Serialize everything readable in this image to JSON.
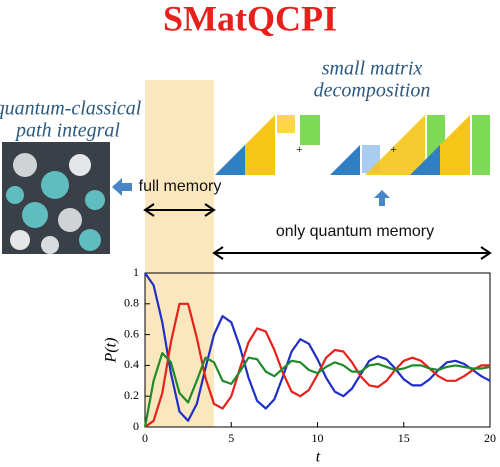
{
  "header": {
    "title": "SMatQCPI"
  },
  "labels": {
    "qcpi": [
      "quantum-classical",
      "path integral"
    ],
    "smd": [
      "small matrix",
      "decomposition"
    ],
    "full_memory": "full memory",
    "quantum_memory": "only quantum memory"
  },
  "chart_data": {
    "type": "line",
    "xlabel": "t",
    "ylabel": "P(t)",
    "x": [
      0,
      0.5,
      1,
      1.5,
      2,
      2.5,
      3,
      3.5,
      4,
      4.5,
      5,
      5.5,
      6,
      6.5,
      7,
      7.5,
      8,
      8.5,
      9,
      9.5,
      10,
      10.5,
      11,
      11.5,
      12,
      12.5,
      13,
      13.5,
      14,
      14.5,
      15,
      15.5,
      16,
      16.5,
      17,
      17.5,
      18,
      18.5,
      19,
      19.5,
      20
    ],
    "series": [
      {
        "color": "#1f2fc8",
        "values": [
          1.0,
          0.92,
          0.68,
          0.35,
          0.1,
          0.04,
          0.15,
          0.38,
          0.6,
          0.72,
          0.68,
          0.52,
          0.32,
          0.17,
          0.12,
          0.18,
          0.33,
          0.49,
          0.57,
          0.54,
          0.44,
          0.32,
          0.23,
          0.2,
          0.25,
          0.34,
          0.43,
          0.46,
          0.44,
          0.38,
          0.31,
          0.27,
          0.27,
          0.31,
          0.37,
          0.42,
          0.43,
          0.41,
          0.37,
          0.33,
          0.3
        ]
      },
      {
        "color": "#e8201c",
        "values": [
          0,
          0.04,
          0.22,
          0.55,
          0.8,
          0.8,
          0.58,
          0.32,
          0.15,
          0.12,
          0.2,
          0.38,
          0.55,
          0.64,
          0.62,
          0.5,
          0.35,
          0.23,
          0.2,
          0.24,
          0.34,
          0.45,
          0.5,
          0.49,
          0.42,
          0.33,
          0.27,
          0.26,
          0.3,
          0.37,
          0.43,
          0.45,
          0.43,
          0.38,
          0.33,
          0.3,
          0.3,
          0.33,
          0.37,
          0.4,
          0.4
        ]
      },
      {
        "color": "#1e8a2a",
        "values": [
          0,
          0.3,
          0.48,
          0.42,
          0.22,
          0.16,
          0.3,
          0.45,
          0.42,
          0.3,
          0.28,
          0.36,
          0.45,
          0.44,
          0.36,
          0.33,
          0.38,
          0.43,
          0.42,
          0.37,
          0.35,
          0.39,
          0.42,
          0.4,
          0.36,
          0.36,
          0.4,
          0.41,
          0.39,
          0.37,
          0.38,
          0.4,
          0.4,
          0.38,
          0.37,
          0.39,
          0.4,
          0.39,
          0.38,
          0.38,
          0.39
        ]
      }
    ],
    "xlim": [
      0,
      20
    ],
    "ylim": [
      0,
      1
    ],
    "xticks": [
      0,
      5,
      10,
      15,
      20
    ],
    "yticks": [
      0,
      0.2,
      0.4,
      0.6,
      0.8,
      1
    ],
    "shaded_xrange": [
      0,
      4
    ],
    "shade_color": "#fbe7bd"
  }
}
